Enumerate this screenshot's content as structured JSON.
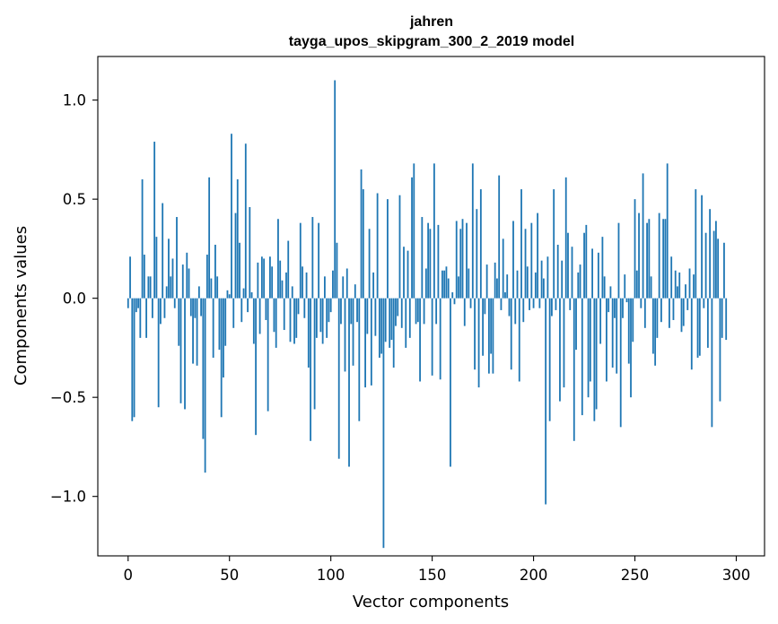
{
  "chart_data": {
    "type": "bar",
    "title_line1": "jahren",
    "title_line2": "tayga_upos_skipgram_300_2_2019 model",
    "xlabel": "Vector components",
    "ylabel": "Components values",
    "xlim": [
      -14.95,
      313.95
    ],
    "ylim": [
      -1.3,
      1.22
    ],
    "xticks": [
      0,
      50,
      100,
      150,
      200,
      250,
      300
    ],
    "xtick_labels": [
      "0",
      "50",
      "100",
      "150",
      "200",
      "250",
      "300"
    ],
    "yticks": [
      1.0,
      0.5,
      0.0,
      -0.5,
      -1.0
    ],
    "ytick_labels": [
      "1.0",
      "0.5",
      "0.0",
      "−0.5",
      "−1.0"
    ],
    "bar_color": "#1f77b4",
    "values": [
      -0.05,
      0.21,
      -0.62,
      -0.6,
      -0.07,
      -0.05,
      -0.2,
      0.6,
      0.22,
      -0.2,
      0.11,
      0.11,
      -0.1,
      0.79,
      0.31,
      -0.55,
      -0.13,
      0.48,
      -0.1,
      0.06,
      0.3,
      0.11,
      0.2,
      -0.05,
      0.41,
      -0.24,
      -0.53,
      0.17,
      -0.56,
      0.23,
      0.15,
      -0.09,
      -0.33,
      -0.1,
      -0.34,
      0.06,
      -0.09,
      -0.71,
      -0.88,
      0.22,
      0.61,
      0.1,
      -0.3,
      0.27,
      0.11,
      -0.26,
      -0.6,
      -0.4,
      -0.24,
      0.04,
      0.02,
      0.83,
      -0.15,
      0.43,
      0.6,
      0.28,
      -0.12,
      0.05,
      0.78,
      -0.07,
      0.46,
      0.03,
      -0.23,
      -0.69,
      0.18,
      -0.18,
      0.21,
      0.2,
      -0.11,
      -0.57,
      0.21,
      0.16,
      -0.17,
      -0.25,
      0.4,
      0.19,
      0.09,
      -0.16,
      0.13,
      0.29,
      -0.22,
      0.06,
      -0.23,
      -0.2,
      -0.08,
      0.38,
      0.16,
      -0.1,
      0.13,
      -0.35,
      -0.72,
      0.41,
      -0.56,
      -0.2,
      0.38,
      -0.17,
      -0.23,
      0.11,
      -0.2,
      -0.12,
      -0.07,
      0.14,
      1.1,
      0.28,
      -0.81,
      -0.13,
      0.11,
      -0.37,
      0.15,
      -0.85,
      -0.13,
      -0.34,
      0.07,
      -0.12,
      -0.62,
      0.65,
      0.55,
      -0.45,
      -0.18,
      0.35,
      -0.44,
      0.13,
      -0.19,
      0.53,
      -0.3,
      -0.28,
      -1.26,
      -0.22,
      0.5,
      -0.25,
      -0.21,
      -0.35,
      -0.14,
      -0.09,
      0.52,
      -0.15,
      0.26,
      -0.25,
      0.24,
      -0.2,
      0.61,
      0.68,
      -0.13,
      -0.12,
      -0.42,
      0.41,
      -0.13,
      0.15,
      0.38,
      0.35,
      -0.39,
      0.68,
      -0.13,
      0.37,
      -0.41,
      0.14,
      0.14,
      0.16,
      0.1,
      -0.85,
      0.03,
      -0.03,
      0.39,
      0.11,
      0.35,
      0.4,
      -0.14,
      0.38,
      0.15,
      -0.05,
      0.68,
      -0.36,
      0.45,
      -0.45,
      0.55,
      -0.29,
      -0.08,
      0.17,
      -0.38,
      -0.28,
      -0.38,
      0.18,
      0.1,
      0.62,
      -0.06,
      0.3,
      0.03,
      0.12,
      -0.09,
      -0.36,
      0.39,
      -0.13,
      0.14,
      -0.42,
      0.55,
      -0.12,
      0.35,
      0.16,
      -0.06,
      0.38,
      -0.05,
      0.13,
      0.43,
      -0.05,
      0.19,
      0.1,
      -1.04,
      0.21,
      -0.62,
      -0.09,
      0.55,
      -0.06,
      0.27,
      -0.52,
      0.19,
      -0.45,
      0.61,
      0.33,
      -0.06,
      0.26,
      -0.72,
      -0.26,
      0.13,
      0.17,
      -0.59,
      0.33,
      0.37,
      -0.5,
      -0.42,
      0.25,
      -0.62,
      -0.56,
      0.23,
      -0.23,
      0.31,
      0.11,
      -0.42,
      -0.07,
      0.06,
      -0.35,
      -0.1,
      -0.38,
      0.38,
      -0.65,
      -0.1,
      0.12,
      -0.02,
      -0.33,
      -0.5,
      -0.22,
      0.5,
      0.14,
      0.43,
      -0.05,
      0.63,
      -0.15,
      0.38,
      0.4,
      0.11,
      -0.28,
      -0.34,
      -0.2,
      0.43,
      -0.12,
      0.4,
      0.4,
      0.68,
      -0.15,
      0.21,
      -0.11,
      0.14,
      0.06,
      0.13,
      -0.17,
      -0.14,
      0.07,
      -0.06,
      0.15,
      -0.36,
      0.12,
      0.55,
      -0.3,
      -0.29,
      0.52,
      -0.05,
      0.33,
      -0.25,
      0.45,
      -0.65,
      0.34,
      0.39,
      0.3,
      -0.52,
      -0.2,
      0.28,
      -0.21
    ]
  }
}
